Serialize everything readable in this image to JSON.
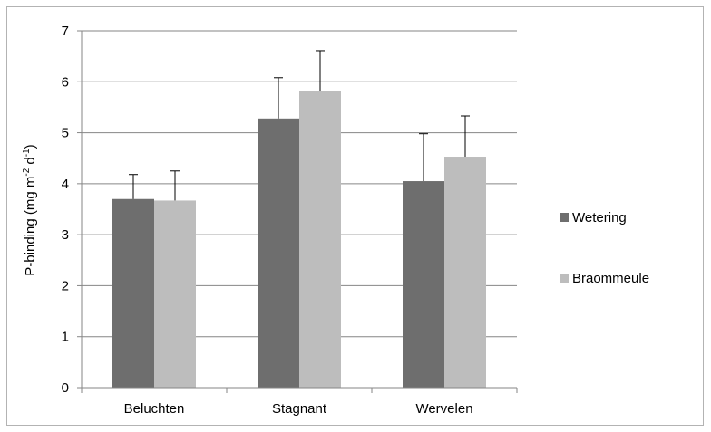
{
  "chart_data": {
    "type": "bar",
    "title": "",
    "xlabel": "",
    "ylabel": {
      "prefix": "P-binding (mg m",
      "sup1": "-2",
      "mid": " d",
      "sup2": "-1",
      "suffix": ")"
    },
    "ylim": [
      0,
      7
    ],
    "yticks": [
      "0",
      "1",
      "2",
      "3",
      "4",
      "5",
      "6",
      "7"
    ],
    "grid": true,
    "legend_position": "right",
    "categories": [
      "Beluchten",
      "Stagnant",
      "Wervelen"
    ],
    "series": [
      {
        "name": "Wetering",
        "color": "#6e6e6e",
        "values": [
          3.7,
          5.28,
          4.05
        ],
        "errors": [
          0.48,
          0.8,
          0.93
        ]
      },
      {
        "name": "Braommeule",
        "color": "#bdbdbd",
        "values": [
          3.67,
          5.82,
          4.53
        ],
        "errors": [
          0.58,
          0.79,
          0.8
        ]
      }
    ]
  }
}
